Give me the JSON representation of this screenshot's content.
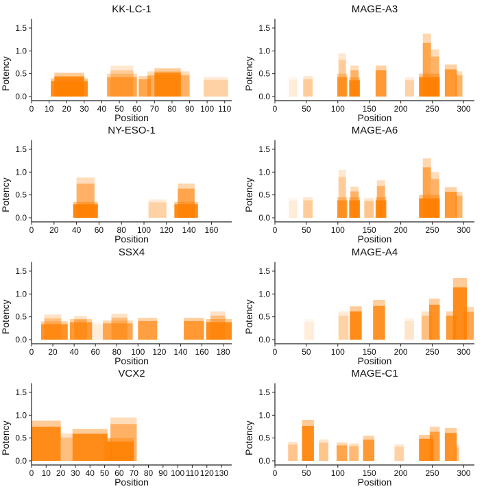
{
  "chart_data": [
    {
      "type": "bar",
      "title": "KK-LC-1",
      "xlabel": "Position",
      "ylabel": "Potency",
      "xlim": [
        0,
        114
      ],
      "ylim": [
        -0.1,
        1.7
      ],
      "xticks": [
        0,
        10,
        20,
        30,
        40,
        50,
        60,
        70,
        80,
        90,
        100,
        110
      ],
      "yticks": [
        0.0,
        0.5,
        1.0,
        1.5
      ],
      "regions": [
        [
          11,
          32,
          0.4,
          0.9
        ],
        [
          13,
          30,
          0.52,
          0.9
        ],
        [
          43,
          60,
          0.5,
          0.7
        ],
        [
          45,
          58,
          0.68,
          0.4
        ],
        [
          61,
          68,
          0.45,
          0.7
        ],
        [
          66,
          90,
          0.55,
          0.6
        ],
        [
          70,
          85,
          0.62,
          0.9
        ],
        [
          98,
          112,
          0.43,
          0.35
        ]
      ]
    },
    {
      "type": "bar",
      "title": "MAGE-A3",
      "xlabel": "Position",
      "ylabel": "Potency",
      "xlim": [
        0,
        317
      ],
      "ylim": [
        -0.1,
        1.7
      ],
      "xticks": [
        0,
        50,
        100,
        150,
        200,
        250,
        300
      ],
      "yticks": [
        0.0,
        0.5,
        1.0,
        1.5
      ],
      "regions": [
        [
          22,
          36,
          0.43,
          0.15
        ],
        [
          45,
          60,
          0.45,
          0.4
        ],
        [
          99,
          115,
          0.5,
          0.8
        ],
        [
          101,
          113,
          0.95,
          0.4
        ],
        [
          118,
          135,
          0.42,
          0.9
        ],
        [
          120,
          133,
          0.68,
          0.6
        ],
        [
          160,
          177,
          0.68,
          0.8
        ],
        [
          207,
          221,
          0.42,
          0.35
        ],
        [
          229,
          262,
          0.5,
          0.95
        ],
        [
          235,
          248,
          1.38,
          0.7
        ],
        [
          248,
          261,
          1.03,
          0.6
        ],
        [
          270,
          289,
          0.7,
          0.8
        ],
        [
          287,
          298,
          0.55,
          0.6
        ]
      ]
    },
    {
      "type": "bar",
      "title": "NY-ESO-1",
      "xlabel": "Position",
      "ylabel": "Potency",
      "xlim": [
        0,
        178
      ],
      "ylim": [
        -0.1,
        1.7
      ],
      "xticks": [
        0,
        20,
        40,
        60,
        80,
        100,
        120,
        140,
        160
      ],
      "yticks": [
        0.0,
        0.5,
        1.0,
        1.5
      ],
      "regions": [
        [
          37,
          59,
          0.35,
          0.95
        ],
        [
          40,
          56,
          0.88,
          0.6
        ],
        [
          104,
          120,
          0.4,
          0.35
        ],
        [
          127,
          148,
          0.35,
          0.9
        ],
        [
          130,
          145,
          0.75,
          0.7
        ]
      ]
    },
    {
      "type": "bar",
      "title": "MAGE-A6",
      "xlabel": "Position",
      "ylabel": "Potency",
      "xlim": [
        0,
        317
      ],
      "ylim": [
        -0.1,
        1.7
      ],
      "xticks": [
        0,
        50,
        100,
        150,
        200,
        250,
        300
      ],
      "yticks": [
        0.0,
        0.5,
        1.0,
        1.5
      ],
      "regions": [
        [
          22,
          36,
          0.43,
          0.15
        ],
        [
          45,
          60,
          0.45,
          0.4
        ],
        [
          99,
          115,
          0.45,
          0.8
        ],
        [
          101,
          113,
          1.05,
          0.4
        ],
        [
          118,
          135,
          0.45,
          0.9
        ],
        [
          120,
          133,
          0.68,
          0.6
        ],
        [
          142,
          157,
          0.43,
          0.45
        ],
        [
          160,
          177,
          0.45,
          0.9
        ],
        [
          162,
          175,
          0.82,
          0.6
        ],
        [
          229,
          262,
          0.5,
          0.95
        ],
        [
          235,
          248,
          1.3,
          0.7
        ],
        [
          248,
          261,
          1.0,
          0.6
        ],
        [
          270,
          289,
          0.67,
          0.8
        ],
        [
          287,
          298,
          0.57,
          0.6
        ]
      ]
    },
    {
      "type": "bar",
      "title": "SSX4",
      "xlabel": "Position",
      "ylabel": "Potency",
      "xlim": [
        0,
        188
      ],
      "ylim": [
        -0.1,
        1.7
      ],
      "xticks": [
        0,
        20,
        40,
        60,
        80,
        100,
        120,
        140,
        160,
        180
      ],
      "yticks": [
        0.0,
        0.5,
        1.0,
        1.5
      ],
      "regions": [
        [
          9,
          34,
          0.4,
          0.85
        ],
        [
          12,
          28,
          0.55,
          0.5
        ],
        [
          36,
          57,
          0.45,
          0.8
        ],
        [
          40,
          52,
          0.52,
          0.5
        ],
        [
          58,
          67,
          0.38,
          0.15
        ],
        [
          67,
          95,
          0.42,
          0.7
        ],
        [
          75,
          90,
          0.57,
          0.5
        ],
        [
          100,
          118,
          0.48,
          0.75
        ],
        [
          143,
          162,
          0.48,
          0.8
        ],
        [
          164,
          188,
          0.45,
          0.9
        ],
        [
          168,
          182,
          0.62,
          0.5
        ]
      ]
    },
    {
      "type": "bar",
      "title": "MAGE-A4",
      "xlabel": "Position",
      "ylabel": "Potency",
      "xlim": [
        0,
        317
      ],
      "ylim": [
        -0.1,
        1.7
      ],
      "xticks": [
        0,
        50,
        100,
        150,
        200,
        250,
        300
      ],
      "yticks": [
        0.0,
        0.5,
        1.0,
        1.5
      ],
      "regions": [
        [
          47,
          62,
          0.45,
          0.15
        ],
        [
          101,
          117,
          0.62,
          0.35
        ],
        [
          119,
          138,
          0.73,
          0.9
        ],
        [
          156,
          175,
          0.87,
          0.85
        ],
        [
          206,
          221,
          0.48,
          0.2
        ],
        [
          233,
          250,
          0.62,
          0.5
        ],
        [
          245,
          262,
          0.9,
          0.85
        ],
        [
          272,
          288,
          0.62,
          0.8
        ],
        [
          283,
          305,
          1.35,
          0.9
        ],
        [
          300,
          316,
          0.72,
          0.7
        ]
      ]
    },
    {
      "type": "bar",
      "title": "VCX2",
      "xlabel": "Position",
      "ylabel": "Potency",
      "xlim": [
        0,
        137
      ],
      "ylim": [
        -0.1,
        1.7
      ],
      "xticks": [
        0,
        10,
        20,
        30,
        40,
        50,
        60,
        70,
        80,
        90,
        100,
        110,
        120,
        130
      ],
      "yticks": [
        0.0,
        0.5,
        1.0,
        1.5
      ],
      "regions": [
        [
          0,
          20,
          0.88,
          0.9
        ],
        [
          20,
          28,
          0.6,
          0.5
        ],
        [
          28,
          52,
          0.7,
          0.9
        ],
        [
          50,
          55,
          0.5,
          0.6
        ],
        [
          54,
          72,
          0.95,
          0.6
        ],
        [
          52,
          70,
          0.5,
          0.9
        ]
      ]
    },
    {
      "type": "bar",
      "title": "MAGE-C1",
      "xlabel": "Position",
      "ylabel": "Potency",
      "xlim": [
        0,
        317
      ],
      "ylim": [
        -0.1,
        1.7
      ],
      "xticks": [
        0,
        50,
        100,
        150,
        200,
        250,
        300
      ],
      "yticks": [
        0.0,
        0.5,
        1.0,
        1.5
      ],
      "regions": [
        [
          21,
          36,
          0.42,
          0.45
        ],
        [
          43,
          62,
          0.9,
          0.9
        ],
        [
          70,
          85,
          0.47,
          0.45
        ],
        [
          98,
          115,
          0.4,
          0.7
        ],
        [
          118,
          133,
          0.38,
          0.55
        ],
        [
          140,
          158,
          0.55,
          0.8
        ],
        [
          190,
          205,
          0.37,
          0.35
        ],
        [
          229,
          252,
          0.57,
          0.9
        ],
        [
          246,
          262,
          0.75,
          0.75
        ],
        [
          270,
          289,
          0.72,
          0.85
        ],
        [
          287,
          293,
          0.35,
          0.4
        ]
      ]
    }
  ],
  "colors": {
    "bar": "#ff7f00",
    "axis": "#222222"
  }
}
